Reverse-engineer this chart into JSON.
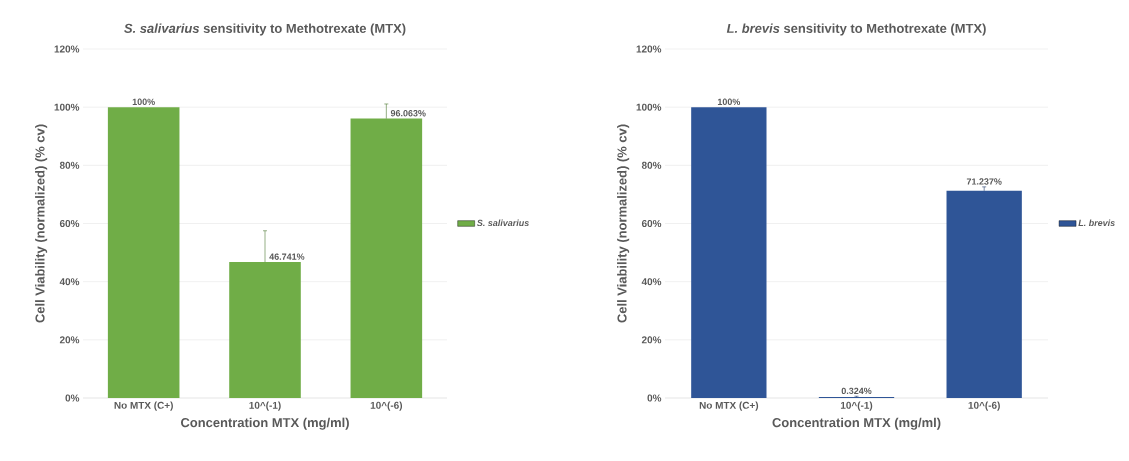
{
  "chart_data": [
    {
      "type": "bar",
      "title": "*S. salivarius* sensitivity to Methotrexate (MTX)",
      "xlabel": "Concentration MTX (mg/ml)",
      "ylabel": "Cell Viability (normalized) (% cv)",
      "categories": [
        "No MTX (C+)",
        "10^(-1)",
        "10^(-6)"
      ],
      "series": [
        {
          "name": "S. salivarius",
          "color": "#70ad47",
          "values": [
            100,
            46.741,
            96.063
          ],
          "value_labels": [
            "100%",
            "46.741%",
            "96.063%"
          ],
          "errors": [
            null,
            [
              46.741,
              57.5
            ],
            [
              96.063,
              101.1
            ]
          ]
        }
      ],
      "ylim": [
        0,
        120
      ],
      "yticks": [
        {
          "value": 0,
          "label": "0%"
        },
        {
          "value": 20,
          "label": "20%"
        },
        {
          "value": 40,
          "label": "40%"
        },
        {
          "value": 60,
          "label": "60%"
        },
        {
          "value": 80,
          "label": "80%"
        },
        {
          "value": 100,
          "label": "100%"
        },
        {
          "value": 120,
          "label": "120%"
        }
      ],
      "grid": "y",
      "legend": "right"
    },
    {
      "type": "bar",
      "title": "*L. brevis* sensitivity to Methotrexate (MTX)",
      "xlabel": "Concentration MTX (mg/ml)",
      "ylabel": "Cell Viability (normalized) (% cv)",
      "categories": [
        "No MTX (C+)",
        "10^(-1)",
        "10^(-6)"
      ],
      "series": [
        {
          "name": "L. brevis",
          "color": "#2f5597",
          "values": [
            100,
            0.324,
            71.237
          ],
          "value_labels": [
            "100%",
            "0.324%",
            "71.237%"
          ],
          "errors": [
            null,
            [
              0.324,
              0.6
            ],
            [
              71.237,
              72.6
            ]
          ]
        }
      ],
      "ylim": [
        0,
        120
      ],
      "yticks": [
        {
          "value": 0,
          "label": "0%"
        },
        {
          "value": 20,
          "label": "20%"
        },
        {
          "value": 40,
          "label": "40%"
        },
        {
          "value": 60,
          "label": "60%"
        },
        {
          "value": 80,
          "label": "80%"
        },
        {
          "value": 100,
          "label": "100%"
        },
        {
          "value": 120,
          "label": "120%"
        }
      ],
      "grid": "y",
      "legend": "right"
    }
  ]
}
